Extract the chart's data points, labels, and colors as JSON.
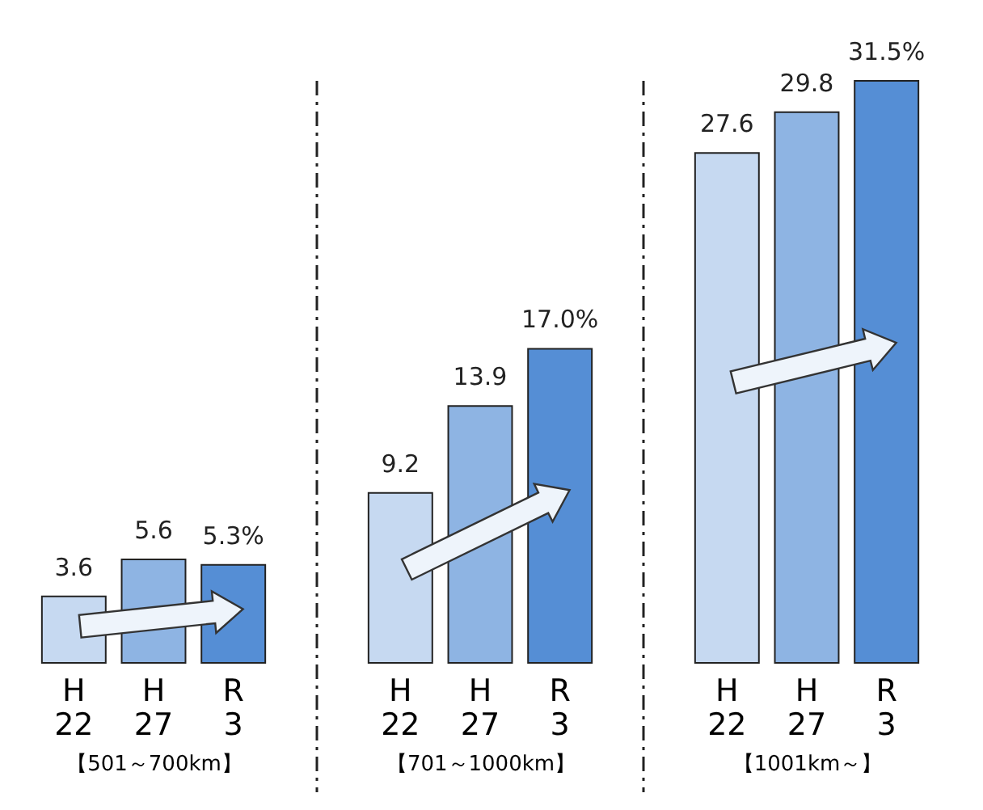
{
  "chart_data": [
    {
      "type": "bar",
      "categories": [
        "H 22",
        "H 27",
        "R 3"
      ],
      "values": [
        3.6,
        5.6,
        5.3
      ],
      "colors": [
        "#c6d9f1",
        "#8eb4e3",
        "#558ed5"
      ],
      "value_labels": [
        "3.6",
        "5.6",
        "5.3%"
      ],
      "xlabel": "【501～700km】",
      "tick_labels": "x"
    },
    {
      "type": "bar",
      "categories": [
        "H 22",
        "H 27",
        "R 3"
      ],
      "values": [
        9.2,
        13.9,
        17.0
      ],
      "colors": [
        "#c6d9f1",
        "#8eb4e3",
        "#558ed5"
      ],
      "value_labels": [
        "9.2",
        "13.9",
        "17.0%"
      ],
      "xlabel": "【701～1000km】",
      "tick_labels": "x"
    },
    {
      "type": "bar",
      "categories": [
        "H 22",
        "H 27",
        "R 3"
      ],
      "values": [
        27.6,
        29.8,
        31.5
      ],
      "colors": [
        "#c6d9f1",
        "#8eb4e3",
        "#558ed5"
      ],
      "value_labels": [
        "27.6",
        "29.8",
        "31.5%"
      ],
      "xlabel": "【1001km～】",
      "tick_labels": "x"
    }
  ]
}
